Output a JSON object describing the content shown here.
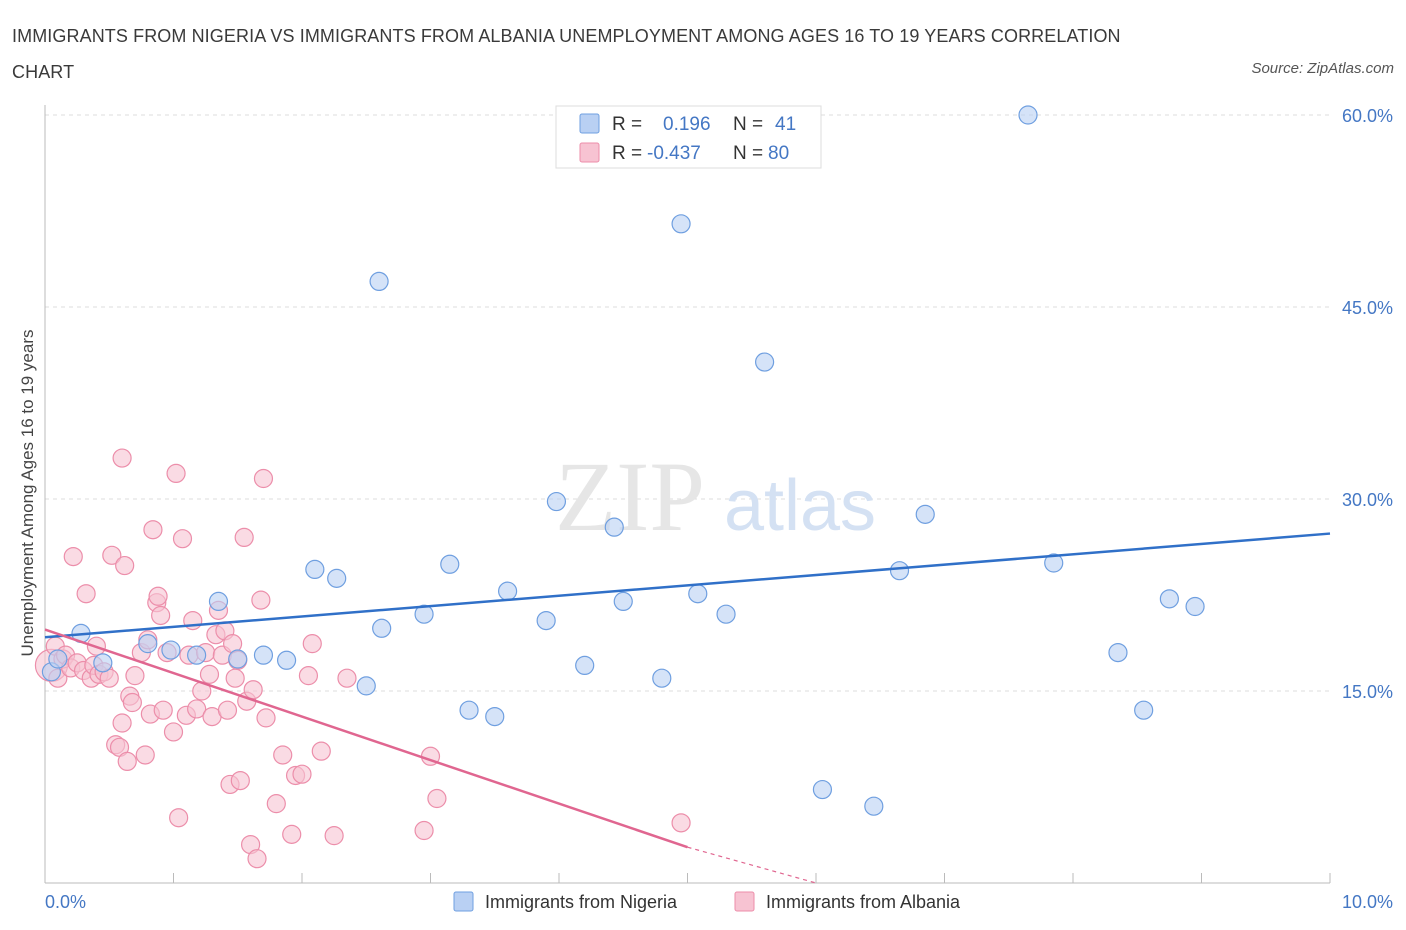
{
  "title": "IMMIGRANTS FROM NIGERIA VS IMMIGRANTS FROM ALBANIA UNEMPLOYMENT AMONG AGES 16 TO 19 YEARS CORRELATION CHART",
  "source": "Source: ZipAtlas.com",
  "colors": {
    "nigeria": "#6f9fe0",
    "nigeria_fill": "#b9d0f3",
    "nigeria_line": "#3070c8",
    "albania": "#ec8eaa",
    "albania_fill": "#f7c3d2",
    "albania_line": "#e06690",
    "axis_text": "#4477c4",
    "grid": "#dcdcdc"
  },
  "legend_box": {
    "rows": [
      {
        "r_label": "R =",
        "r_value": "0.196",
        "n_label": "N =",
        "n_value": "41"
      },
      {
        "r_label": "R =",
        "r_value": "-0.437",
        "n_label": "N =",
        "n_value": "80"
      }
    ]
  },
  "watermark": {
    "zip": "ZIP",
    "atlas": "atlas"
  },
  "chart_data": {
    "type": "scatter",
    "title": "IMMIGRANTS FROM NIGERIA VS IMMIGRANTS FROM ALBANIA UNEMPLOYMENT AMONG AGES 16 TO 19 YEARS CORRELATION CHART",
    "xlabel": "",
    "ylabel": "Unemployment Among Ages 16 to 19 years",
    "xlim": [
      0,
      10
    ],
    "ylim": [
      0,
      60
    ],
    "x_tick_labels": [
      "0.0%",
      "10.0%"
    ],
    "y_tick_labels": [
      "15.0%",
      "30.0%",
      "45.0%",
      "60.0%"
    ],
    "y_ticks": [
      15,
      30,
      45,
      60
    ],
    "grid": true,
    "legend_position": "top-center",
    "series": [
      {
        "name": "Immigrants from Nigeria",
        "r": 0.196,
        "n": 41,
        "trend": {
          "x": [
            0,
            10
          ],
          "y": [
            19.2,
            27.3
          ]
        },
        "points": [
          [
            0.05,
            16.5
          ],
          [
            0.1,
            17.5
          ],
          [
            0.28,
            19.5
          ],
          [
            0.45,
            17.2
          ],
          [
            0.8,
            18.7
          ],
          [
            0.98,
            18.2
          ],
          [
            1.18,
            17.8
          ],
          [
            1.35,
            22.0
          ],
          [
            1.5,
            17.5
          ],
          [
            1.7,
            17.8
          ],
          [
            1.88,
            17.4
          ],
          [
            2.1,
            24.5
          ],
          [
            2.27,
            23.8
          ],
          [
            2.5,
            15.4
          ],
          [
            2.6,
            47.0
          ],
          [
            2.62,
            19.9
          ],
          [
            2.95,
            21.0
          ],
          [
            3.15,
            24.9
          ],
          [
            3.3,
            13.5
          ],
          [
            3.5,
            13.0
          ],
          [
            3.6,
            22.8
          ],
          [
            3.9,
            20.5
          ],
          [
            3.98,
            29.8
          ],
          [
            4.2,
            17.0
          ],
          [
            4.43,
            27.8
          ],
          [
            4.5,
            22.0
          ],
          [
            4.8,
            16.0
          ],
          [
            4.95,
            51.5
          ],
          [
            5.08,
            22.6
          ],
          [
            5.3,
            21.0
          ],
          [
            5.6,
            40.7
          ],
          [
            6.05,
            7.3
          ],
          [
            6.45,
            6.0
          ],
          [
            6.65,
            24.4
          ],
          [
            6.85,
            28.8
          ],
          [
            7.65,
            60.0
          ],
          [
            7.85,
            25.0
          ],
          [
            8.35,
            18.0
          ],
          [
            8.55,
            13.5
          ],
          [
            8.75,
            22.2
          ],
          [
            8.95,
            21.6
          ]
        ]
      },
      {
        "name": "Immigrants from Albania",
        "r": -0.437,
        "n": 80,
        "trend": {
          "x": [
            0,
            5.0
          ],
          "y": [
            19.8,
            2.8
          ]
        },
        "trend_dashed": {
          "x": [
            5.0,
            6.0
          ],
          "y": [
            2.8,
            0.0
          ]
        },
        "points": [
          [
            0.05,
            17.0
          ],
          [
            0.08,
            18.5
          ],
          [
            0.1,
            16.0
          ],
          [
            0.14,
            17.5
          ],
          [
            0.16,
            17.8
          ],
          [
            0.2,
            16.8
          ],
          [
            0.22,
            25.5
          ],
          [
            0.25,
            17.2
          ],
          [
            0.3,
            16.6
          ],
          [
            0.32,
            22.6
          ],
          [
            0.36,
            16.0
          ],
          [
            0.38,
            17.0
          ],
          [
            0.4,
            18.5
          ],
          [
            0.42,
            16.3
          ],
          [
            0.46,
            16.5
          ],
          [
            0.5,
            16.0
          ],
          [
            0.52,
            25.6
          ],
          [
            0.55,
            10.8
          ],
          [
            0.58,
            10.6
          ],
          [
            0.6,
            12.5
          ],
          [
            0.6,
            33.2
          ],
          [
            0.62,
            24.8
          ],
          [
            0.64,
            9.5
          ],
          [
            0.66,
            14.6
          ],
          [
            0.68,
            14.1
          ],
          [
            0.7,
            16.2
          ],
          [
            0.75,
            18.0
          ],
          [
            0.78,
            10.0
          ],
          [
            0.8,
            19.0
          ],
          [
            0.82,
            13.2
          ],
          [
            0.84,
            27.6
          ],
          [
            0.87,
            21.9
          ],
          [
            0.88,
            22.4
          ],
          [
            0.9,
            20.9
          ],
          [
            0.92,
            13.5
          ],
          [
            0.95,
            18.0
          ],
          [
            1.0,
            11.8
          ],
          [
            1.02,
            32.0
          ],
          [
            1.04,
            5.1
          ],
          [
            1.07,
            26.9
          ],
          [
            1.1,
            13.1
          ],
          [
            1.12,
            17.8
          ],
          [
            1.15,
            20.5
          ],
          [
            1.18,
            13.6
          ],
          [
            1.22,
            15.0
          ],
          [
            1.25,
            18.0
          ],
          [
            1.28,
            16.3
          ],
          [
            1.3,
            13.0
          ],
          [
            1.33,
            19.4
          ],
          [
            1.35,
            21.3
          ],
          [
            1.38,
            17.8
          ],
          [
            1.4,
            19.7
          ],
          [
            1.42,
            13.5
          ],
          [
            1.44,
            7.7
          ],
          [
            1.46,
            18.7
          ],
          [
            1.48,
            16.0
          ],
          [
            1.5,
            17.4
          ],
          [
            1.52,
            8.0
          ],
          [
            1.55,
            27.0
          ],
          [
            1.57,
            14.2
          ],
          [
            1.6,
            3.0
          ],
          [
            1.62,
            15.1
          ],
          [
            1.65,
            1.9
          ],
          [
            1.68,
            22.1
          ],
          [
            1.7,
            31.6
          ],
          [
            1.72,
            12.9
          ],
          [
            1.8,
            6.2
          ],
          [
            1.85,
            10.0
          ],
          [
            1.92,
            3.8
          ],
          [
            1.95,
            8.4
          ],
          [
            2.0,
            8.5
          ],
          [
            2.05,
            16.2
          ],
          [
            2.08,
            18.7
          ],
          [
            2.15,
            10.3
          ],
          [
            2.25,
            3.7
          ],
          [
            2.35,
            16.0
          ],
          [
            2.95,
            4.1
          ],
          [
            3.0,
            9.9
          ],
          [
            3.05,
            6.6
          ],
          [
            4.95,
            4.7
          ]
        ]
      }
    ]
  }
}
